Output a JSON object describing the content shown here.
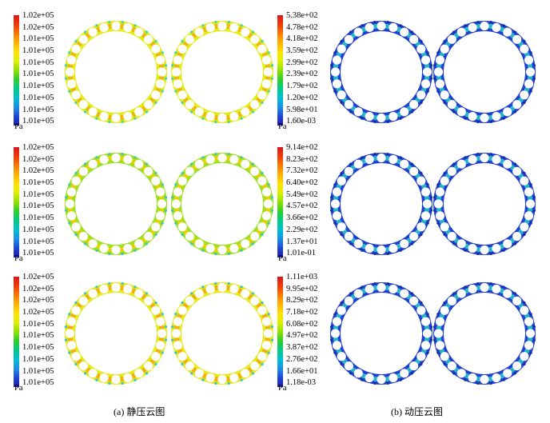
{
  "captions": {
    "left": "(a) 静压云图",
    "right": "(b) 动压云图"
  },
  "unit": "Pa",
  "static_pressure": {
    "colormap": [
      "#d7191c",
      "#f03b0a",
      "#fa7a00",
      "#ffb400",
      "#ffe200",
      "#d9f200",
      "#8fe000",
      "#2ccf2c",
      "#00c98a",
      "#00bfd0",
      "#1b8fe6",
      "#2146d6",
      "#1b1bb0"
    ],
    "rings": [
      {
        "base": "#e2ec1a",
        "accent": "#f0b000",
        "shade": "#35d0b8"
      },
      {
        "base": "#9fe020",
        "accent": "#f0d000",
        "shade": "#30c8c0"
      },
      {
        "base": "#e6e820",
        "accent": "#f2a800",
        "shade": "#25c0d0"
      }
    ],
    "rows": [
      {
        "labels": [
          "1.02e+05",
          "1.02e+05",
          "1.01e+05",
          "1.01e+05",
          "1.01e+05",
          "1.01e+05",
          "1.01e+05",
          "1.01e+05",
          "1.01e+05",
          "1.01e+05"
        ]
      },
      {
        "labels": [
          "1.02e+05",
          "1.02e+05",
          "1.02e+05",
          "1.01e+05",
          "1.01e+05",
          "1.01e+05",
          "1.01e+05",
          "1.01e+05",
          "1.01e+05",
          "1.01e+05"
        ]
      },
      {
        "labels": [
          "1.02e+05",
          "1.02e+05",
          "1.02e+05",
          "1.02e+05",
          "1.01e+05",
          "1.01e+05",
          "1.01e+05",
          "1.01e+05",
          "1.01e+05",
          "1.01e+05"
        ]
      }
    ]
  },
  "dynamic_pressure": {
    "colormap": [
      "#d7191c",
      "#f03b0a",
      "#fa7a00",
      "#ffb400",
      "#ffe200",
      "#d9f200",
      "#8fe000",
      "#2ccf2c",
      "#00c98a",
      "#00bfd0",
      "#1b8fe6",
      "#2146d6",
      "#1b1bb0"
    ],
    "rings": [
      {
        "base": "#1f3fd0",
        "accent": "#27c8c8",
        "shade": "#142a9a"
      },
      {
        "base": "#1f3fd0",
        "accent": "#27c8c8",
        "shade": "#142a9a"
      },
      {
        "base": "#1f3fd0",
        "accent": "#27c8c8",
        "shade": "#142a9a"
      }
    ],
    "rows": [
      {
        "labels": [
          "5.38e+02",
          "4.78e+02",
          "4.18e+02",
          "3.59e+02",
          "2.99e+02",
          "2.39e+02",
          "1.79e+02",
          "1.20e+02",
          "5.98e+01",
          "1.60e-03"
        ]
      },
      {
        "labels": [
          "9.14e+02",
          "8.23e+02",
          "7.32e+02",
          "6.40e+02",
          "5.49e+02",
          "4.57e+02",
          "3.66e+02",
          "2.29e+02",
          "1.37e+01",
          "1.01e-01"
        ]
      },
      {
        "labels": [
          "1.11e+03",
          "9.95e+02",
          "8.29e+02",
          "7.18e+02",
          "6.08e+02",
          "4.97e+02",
          "3.87e+02",
          "2.76e+02",
          "1.66e+01",
          "1.18e-03"
        ]
      }
    ]
  },
  "holes_per_ring": 24
}
